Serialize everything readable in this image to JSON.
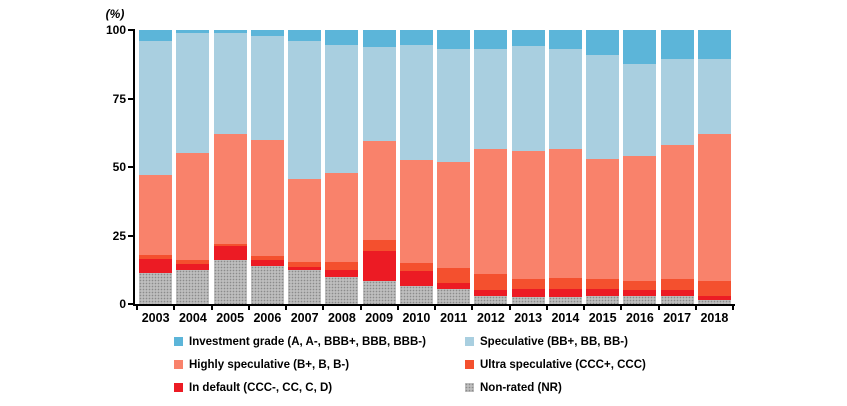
{
  "chart_data": {
    "type": "bar",
    "subtype": "stacked-percent",
    "title": "",
    "axis_title": "(%)",
    "xlabel": "",
    "ylabel": "(%)",
    "ylim": [
      0,
      100
    ],
    "y_ticks": [
      "100",
      "75",
      "50",
      "25",
      "0"
    ],
    "y_tick_values": [
      100,
      75,
      50,
      25,
      0
    ],
    "grid": false,
    "legend_position": "bottom",
    "categories": [
      "2003",
      "2004",
      "2005",
      "2006",
      "2007",
      "2008",
      "2009",
      "2010",
      "2011",
      "2012",
      "2013",
      "2014",
      "2015",
      "2016",
      "2017",
      "2018"
    ],
    "series": [
      {
        "name": "Non-rated (NR)",
        "color": "#b3b3b3",
        "pattern": "stipple",
        "values": [
          11.5,
          12.5,
          16,
          14,
          12.5,
          10,
          8.5,
          6.5,
          5.5,
          3,
          2.5,
          2.5,
          3,
          3,
          3,
          1.5
        ]
      },
      {
        "name": "In default (CCC-, CC, C, D)",
        "color": "#ec1b24",
        "pattern": "solid",
        "values": [
          5,
          2,
          5,
          2,
          1,
          2.5,
          11,
          5.5,
          2,
          2,
          3,
          3,
          2.5,
          2,
          2,
          1.5
        ]
      },
      {
        "name": "Ultra speculative (CCC+, CCC)",
        "color": "#f4502e",
        "pattern": "solid",
        "values": [
          1.5,
          1.5,
          1,
          1.5,
          2,
          3,
          4,
          3,
          5.5,
          6,
          3.5,
          4,
          3.5,
          3.5,
          4,
          5.5
        ]
      },
      {
        "name": "Highly speculative (B+, B, B-)",
        "color": "#f9826b",
        "pattern": "solid",
        "values": [
          29,
          39,
          40,
          42.5,
          30,
          32.5,
          36,
          37.5,
          39,
          45.5,
          47,
          47,
          44,
          45.5,
          49,
          53.5
        ]
      },
      {
        "name": "Speculative (BB+, BB, BB-)",
        "color": "#a9cfe0",
        "pattern": "solid",
        "values": [
          49,
          44,
          37,
          38,
          50.5,
          46.5,
          34.5,
          42,
          41,
          36.5,
          38,
          36.5,
          38,
          33.5,
          31.5,
          27.5
        ]
      },
      {
        "name": "Investment grade (A, A-, BBB+, BBB, BBB-)",
        "color": "#5cb5d9",
        "pattern": "solid",
        "values": [
          4,
          1,
          1,
          2,
          4,
          5.5,
          6,
          5.5,
          7,
          7,
          6,
          7,
          9,
          12.5,
          10.5,
          10.5
        ]
      }
    ]
  },
  "legend": {
    "items": [
      {
        "label": "Investment grade (A, A-, BBB+, BBB, BBB-)",
        "color": "#5cb5d9",
        "pattern": "solid"
      },
      {
        "label": "Speculative (BB+, BB, BB-)",
        "color": "#a9cfe0",
        "pattern": "solid"
      },
      {
        "label": "Highly speculative (B+, B, B-)",
        "color": "#f9826b",
        "pattern": "solid"
      },
      {
        "label": "Ultra speculative (CCC+, CCC)",
        "color": "#f4502e",
        "pattern": "solid"
      },
      {
        "label": "In default (CCC-, CC, C, D)",
        "color": "#ec1b24",
        "pattern": "solid"
      },
      {
        "label": "Non-rated (NR)",
        "color": "#b3b3b3",
        "pattern": "stipple"
      }
    ]
  }
}
